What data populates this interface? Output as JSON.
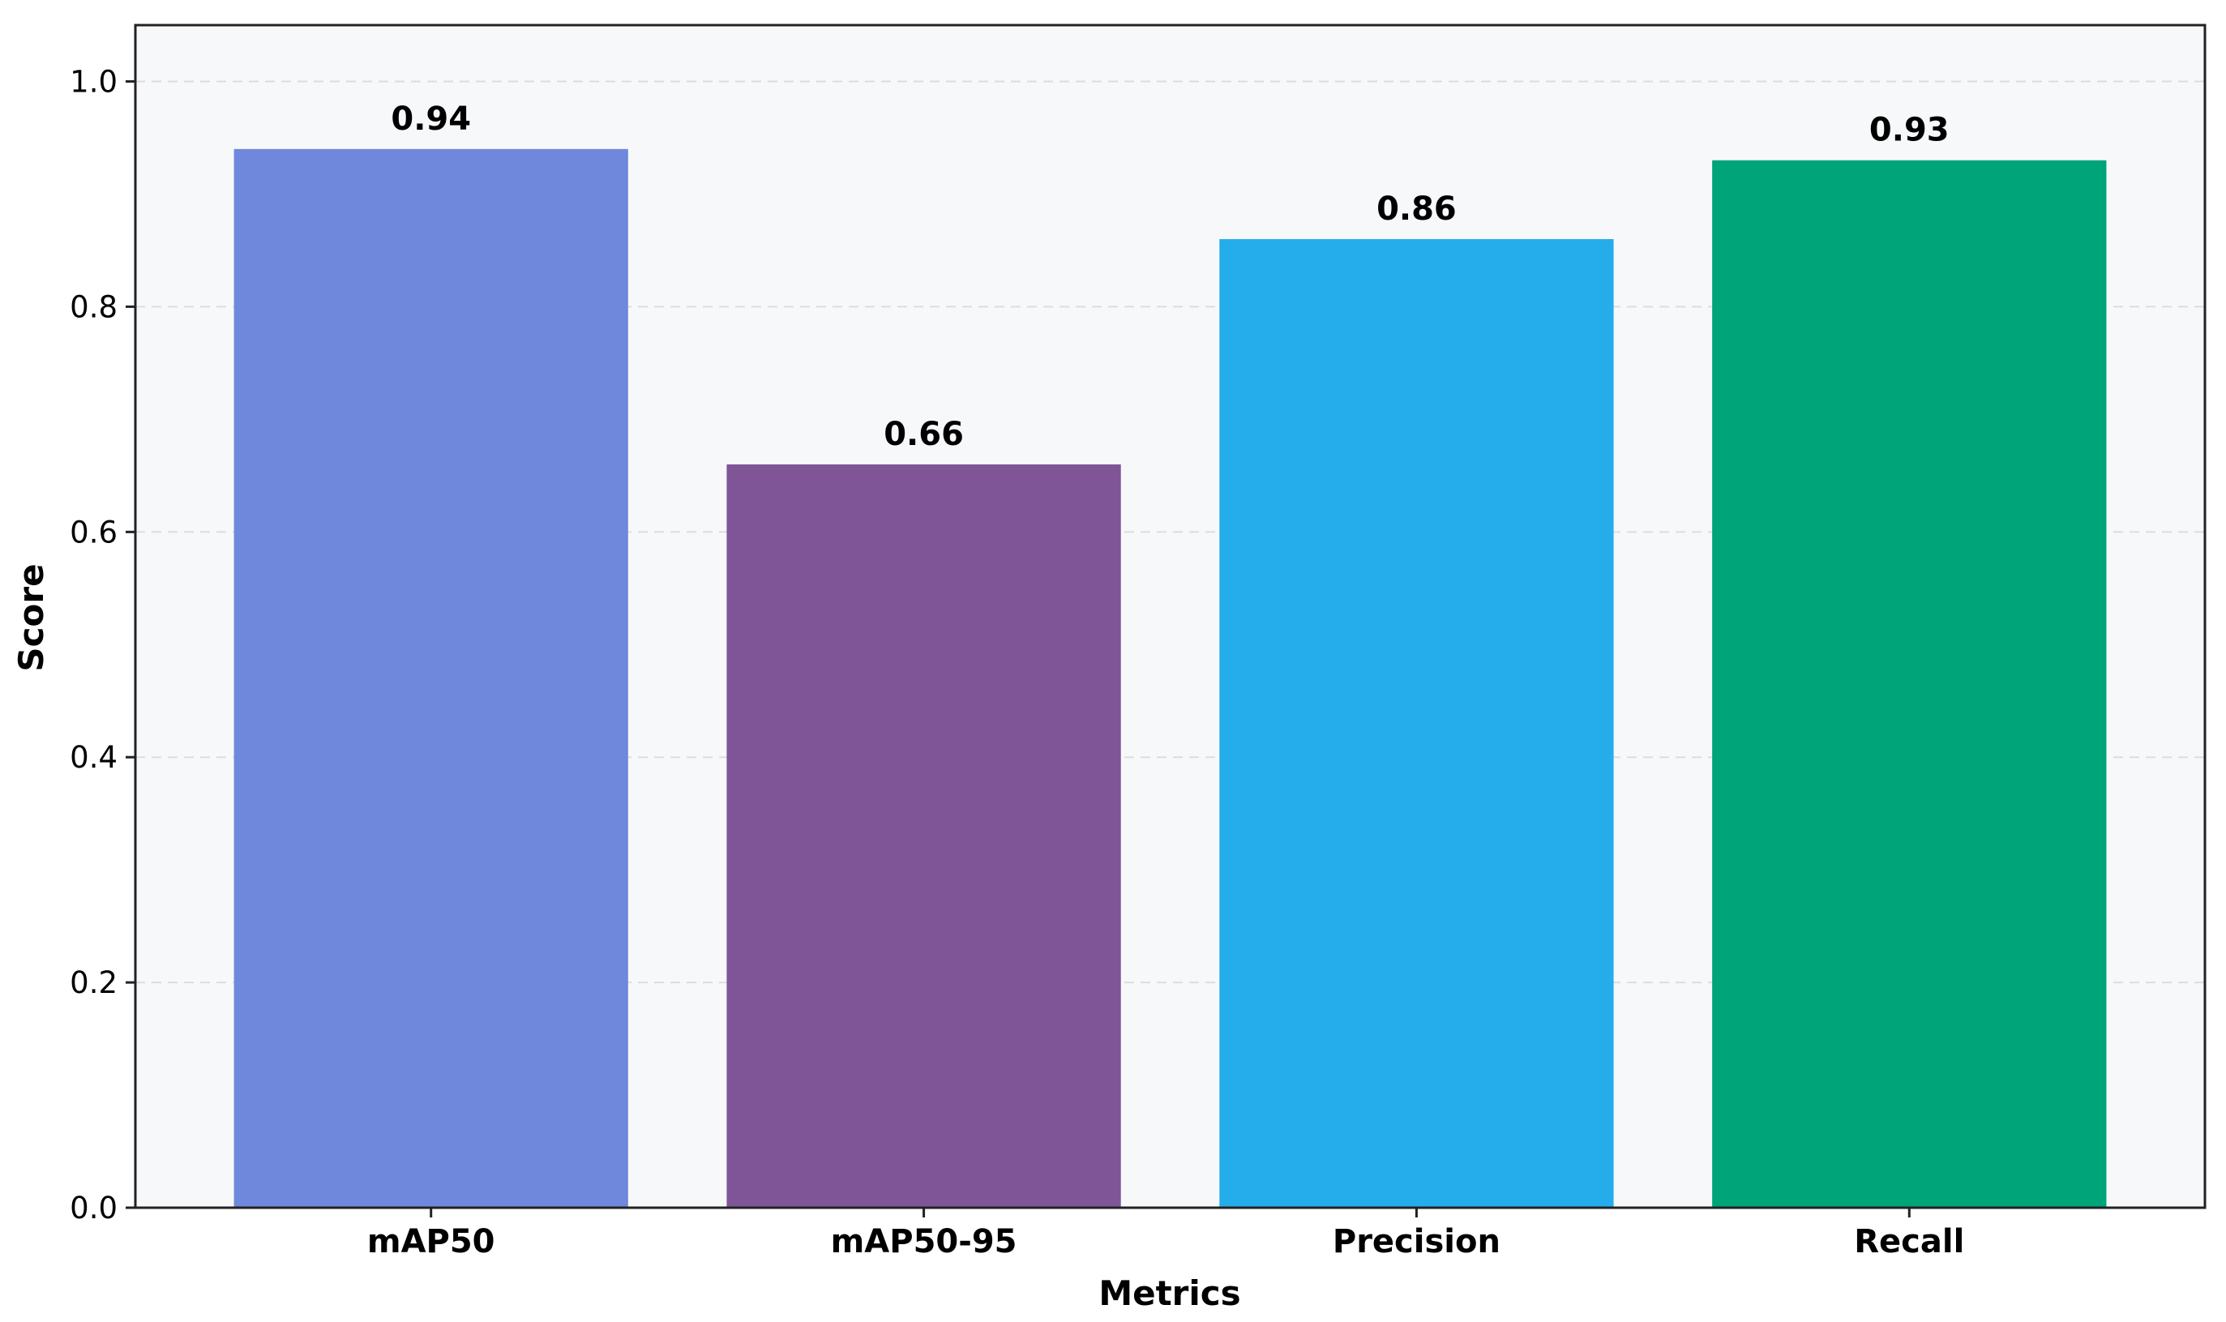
{
  "chart_data": {
    "type": "bar",
    "categories": [
      "mAP50",
      "mAP50-95",
      "Precision",
      "Recall"
    ],
    "values": [
      0.94,
      0.66,
      0.86,
      0.93
    ],
    "value_labels": [
      "0.94",
      "0.66",
      "0.86",
      "0.93"
    ],
    "colors": [
      "#6f88dc",
      "#7f5597",
      "#24aceb",
      "#00a479"
    ],
    "title": "",
    "xlabel": "Metrics",
    "ylabel": "Score",
    "ylim": [
      0,
      1.05
    ],
    "yticks": [
      0.0,
      0.2,
      0.4,
      0.6,
      0.8,
      1.0
    ],
    "ytick_labels": [
      "0.0",
      "0.2",
      "0.4",
      "0.6",
      "0.8",
      "1.0"
    ],
    "grid": "y-dashed",
    "legend": "none",
    "plot_background": "#f7f8fa",
    "gridline_color": "#dcdde0"
  }
}
